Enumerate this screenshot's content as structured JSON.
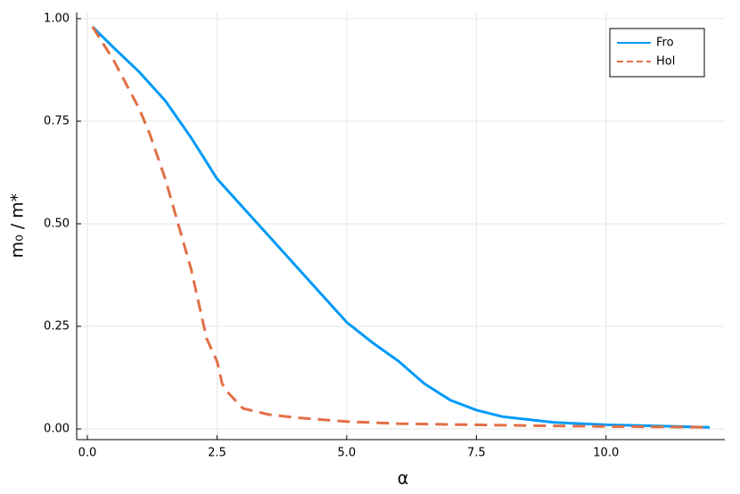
{
  "chart_data": {
    "type": "line",
    "xlabel": "α",
    "ylabel": "m₀ / m*",
    "xlim": [
      -0.206,
      12.29
    ],
    "ylim": [
      -0.026,
      1.015
    ],
    "xticks": [
      {
        "value": 0,
        "label": "0.0"
      },
      2.5,
      {
        "value": 5,
        "label": "5.0"
      },
      7.5,
      {
        "value": 10,
        "label": "10.0"
      }
    ],
    "yticks": [
      {
        "value": 0,
        "label": "0.00"
      },
      0.25,
      {
        "value": 0.5,
        "label": "0.50"
      },
      0.75,
      {
        "value": 1,
        "label": "1.00"
      }
    ],
    "grid": true,
    "legend": "top-right",
    "series": [
      {
        "name": "Fro",
        "color": "#009af9",
        "dash": "solid",
        "x": [
          0.1,
          0.5,
          1,
          1.5,
          2,
          2.5,
          3,
          3.5,
          4,
          4.5,
          5,
          5.5,
          6,
          6.5,
          7,
          7.5,
          8,
          9,
          10,
          11,
          12
        ],
        "values": [
          0.98,
          0.93,
          0.87,
          0.8,
          0.71,
          0.61,
          0.54,
          0.47,
          0.4,
          0.33,
          0.26,
          0.21,
          0.165,
          0.11,
          0.07,
          0.046,
          0.03,
          0.016,
          0.01,
          0.007,
          0.004
        ]
      },
      {
        "name": "Hol",
        "color": "#e26f46",
        "dash": "dashed",
        "x": [
          0.1,
          0.5,
          1,
          1.2,
          1.5,
          2,
          2.3,
          2.5,
          2.6,
          2.7,
          3,
          3.5,
          4,
          5,
          6,
          8,
          10,
          12
        ],
        "values": [
          0.98,
          0.9,
          0.78,
          0.72,
          0.61,
          0.39,
          0.22,
          0.165,
          0.11,
          0.09,
          0.05,
          0.035,
          0.028,
          0.018,
          0.013,
          0.009,
          0.006,
          0.004
        ]
      }
    ]
  }
}
